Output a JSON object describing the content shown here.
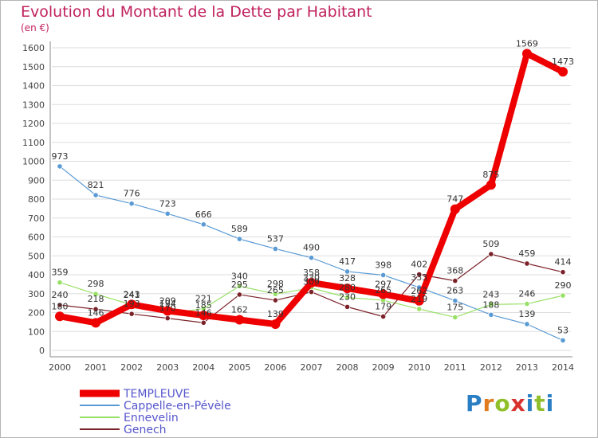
{
  "header": {
    "title": "Evolution du Montant de la Dette par Habitant",
    "unit": "(en €)"
  },
  "logo": {
    "text": "Proxiti",
    "letters": [
      "P",
      "r",
      "o",
      "x",
      "i",
      "t",
      "i"
    ]
  },
  "chart_data": {
    "type": "line",
    "title": "Evolution du Montant de la Dette par Habitant",
    "ylabel": "(en €)",
    "xlabel": "",
    "ylim": [
      0,
      1600
    ],
    "yticks": [
      0,
      100,
      200,
      300,
      400,
      500,
      600,
      700,
      800,
      900,
      1000,
      1100,
      1200,
      1300,
      1400,
      1500,
      1600
    ],
    "categories": [
      "2000",
      "2001",
      "2002",
      "2003",
      "2004",
      "2005",
      "2006",
      "2007",
      "2008",
      "2009",
      "2010",
      "2011",
      "2012",
      "2013",
      "2014"
    ],
    "grid": "horizontal",
    "legend_position": "bottom-left",
    "series": [
      {
        "name": "TEMPLEUVE",
        "color": "#ee0000",
        "width": 8,
        "values": [
          180,
          146,
          243,
          209,
          185,
          162,
          139,
          358,
          328,
          297,
          262,
          747,
          875,
          1569,
          1473
        ]
      },
      {
        "name": "Cappelle-en-Pévèle",
        "color": "#5b9bd5",
        "width": 1.2,
        "values": [
          973,
          821,
          776,
          723,
          666,
          589,
          537,
          490,
          417,
          398,
          333,
          263,
          188,
          139,
          53
        ]
      },
      {
        "name": "Ennevelin",
        "color": "#99e067",
        "width": 1.2,
        "values": [
          359,
          298,
          241,
          194,
          221,
          340,
          298,
          330,
          280,
          265,
          219,
          175,
          243,
          246,
          290
        ]
      },
      {
        "name": "Genech",
        "color": "#7b2229",
        "width": 1.2,
        "values": [
          240,
          218,
          193,
          170,
          146,
          295,
          265,
          309,
          230,
          179,
          402,
          368,
          509,
          459,
          414
        ]
      }
    ]
  }
}
